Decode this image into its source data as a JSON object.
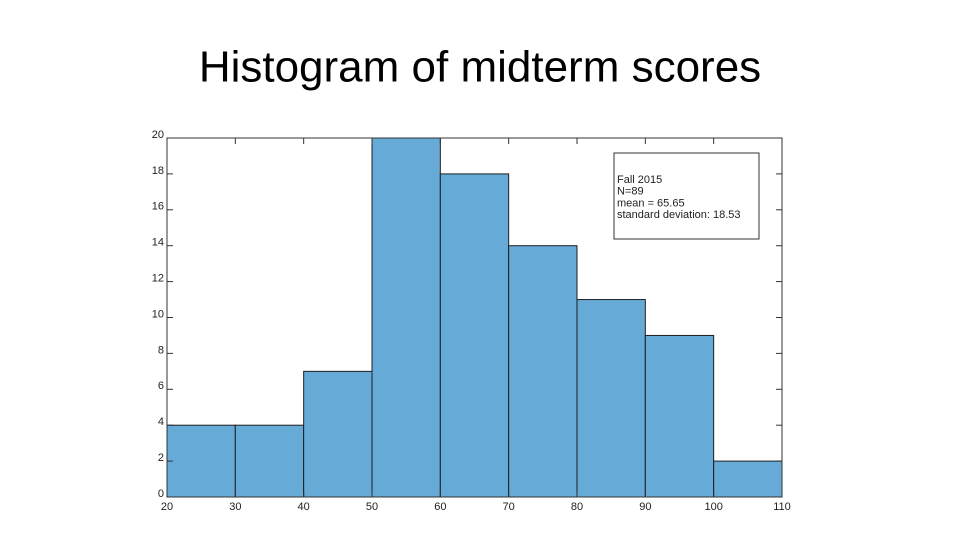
{
  "chart_data": {
    "type": "histogram",
    "title": "Histogram of midterm scores",
    "bins": [
      20,
      30,
      40,
      50,
      60,
      70,
      80,
      90,
      100,
      110
    ],
    "values": [
      4,
      4,
      7,
      20,
      18,
      14,
      11,
      9,
      2
    ],
    "color": "#66aad7",
    "xlim": [
      20,
      110
    ],
    "ylim": [
      0,
      20
    ],
    "xticks": [
      20,
      30,
      40,
      50,
      60,
      70,
      80,
      90,
      100,
      110
    ],
    "yticks": [
      0,
      2,
      4,
      6,
      8,
      10,
      12,
      14,
      16,
      18,
      20
    ],
    "annotations": [
      "Fall 2015",
      "N=89",
      "mean = 65.65",
      "standard deviation: 18.53"
    ]
  }
}
